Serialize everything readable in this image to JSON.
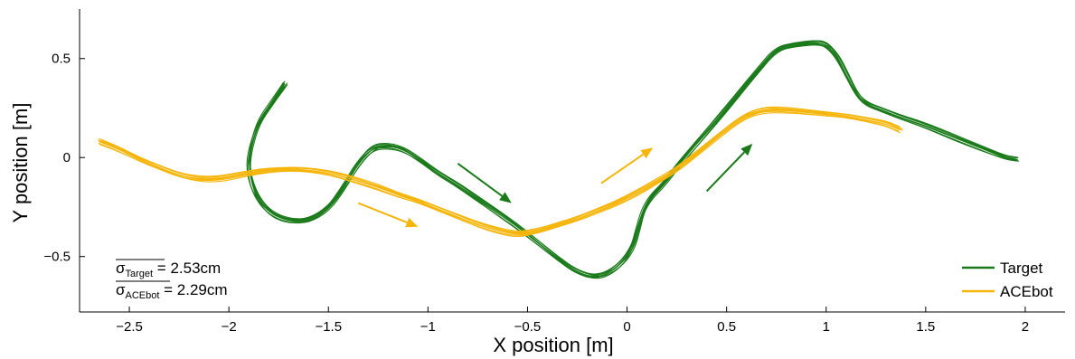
{
  "chart_data": {
    "type": "line",
    "xlabel": "X position [m]",
    "ylabel": "Y position [m]",
    "xlim": [
      -2.75,
      2.2
    ],
    "ylim": [
      -0.78,
      0.75
    ],
    "xticks": [
      -2.5,
      -2,
      -1.5,
      -1,
      -0.5,
      0,
      0.5,
      1,
      1.5,
      2
    ],
    "xtick_labels": [
      "−2.5",
      "−2",
      "−1.5",
      "−1",
      "−0.5",
      "0",
      "0.5",
      "1",
      "1.5",
      "2"
    ],
    "yticks": [
      0.5,
      0,
      -0.5
    ],
    "ytick_labels": [
      "0.5",
      "0",
      "−0.5"
    ],
    "grid": false,
    "legend_position": "bottom-right",
    "series": [
      {
        "name": "Target",
        "color": "#1a7a1a",
        "x": [
          -1.72,
          -1.78,
          -1.85,
          -1.89,
          -1.9,
          -1.88,
          -1.84,
          -1.78,
          -1.7,
          -1.6,
          -1.5,
          -1.42,
          -1.35,
          -1.28,
          -1.2,
          -1.12,
          -1.03,
          -0.95,
          -0.85,
          -0.75,
          -0.65,
          -0.55,
          -0.45,
          -0.35,
          -0.25,
          -0.15,
          -0.05,
          0.02,
          0.05,
          0.08,
          0.12,
          0.18,
          0.25,
          0.35,
          0.45,
          0.55,
          0.65,
          0.75,
          0.85,
          0.95,
          1.0,
          1.05,
          1.1,
          1.15,
          1.2,
          1.28,
          1.38,
          1.5,
          1.62,
          1.72,
          1.82,
          1.9,
          1.96
        ],
        "y": [
          0.37,
          0.28,
          0.18,
          0.05,
          -0.05,
          -0.15,
          -0.23,
          -0.29,
          -0.32,
          -0.32,
          -0.26,
          -0.15,
          -0.03,
          0.05,
          0.06,
          0.04,
          -0.02,
          -0.08,
          -0.14,
          -0.21,
          -0.28,
          -0.35,
          -0.43,
          -0.51,
          -0.58,
          -0.61,
          -0.56,
          -0.47,
          -0.37,
          -0.27,
          -0.2,
          -0.14,
          -0.05,
          0.07,
          0.19,
          0.31,
          0.43,
          0.55,
          0.57,
          0.58,
          0.57,
          0.52,
          0.42,
          0.32,
          0.27,
          0.24,
          0.2,
          0.16,
          0.11,
          0.07,
          0.03,
          0.0,
          -0.01
        ]
      },
      {
        "name": "ACEbot",
        "color": "#f5b50b",
        "x": [
          -2.65,
          -2.55,
          -2.45,
          -2.35,
          -2.25,
          -2.15,
          -2.05,
          -1.95,
          -1.85,
          -1.75,
          -1.65,
          -1.55,
          -1.45,
          -1.35,
          -1.25,
          -1.15,
          -1.05,
          -0.95,
          -0.85,
          -0.75,
          -0.65,
          -0.55,
          -0.45,
          -0.35,
          -0.25,
          -0.15,
          -0.05,
          0.05,
          0.15,
          0.25,
          0.35,
          0.45,
          0.55,
          0.62,
          0.7,
          0.8,
          0.9,
          1.0,
          1.1,
          1.2,
          1.3,
          1.37
        ],
        "y": [
          0.08,
          0.04,
          -0.01,
          -0.05,
          -0.09,
          -0.11,
          -0.11,
          -0.09,
          -0.07,
          -0.06,
          -0.06,
          -0.07,
          -0.09,
          -0.12,
          -0.15,
          -0.19,
          -0.22,
          -0.26,
          -0.3,
          -0.34,
          -0.37,
          -0.39,
          -0.37,
          -0.34,
          -0.31,
          -0.27,
          -0.23,
          -0.18,
          -0.12,
          -0.06,
          0.02,
          0.1,
          0.18,
          0.22,
          0.24,
          0.24,
          0.23,
          0.22,
          0.21,
          0.19,
          0.17,
          0.14
        ]
      }
    ],
    "arrows": [
      {
        "color": "#1a7a1a",
        "from": [
          -0.85,
          -0.03
        ],
        "to": [
          -0.58,
          -0.23
        ]
      },
      {
        "color": "#1a7a1a",
        "from": [
          0.4,
          -0.17
        ],
        "to": [
          0.63,
          0.07
        ]
      },
      {
        "color": "#f5b50b",
        "from": [
          -1.35,
          -0.23
        ],
        "to": [
          -1.05,
          -0.35
        ]
      },
      {
        "color": "#f5b50b",
        "from": [
          -0.13,
          -0.13
        ],
        "to": [
          0.13,
          0.05
        ]
      }
    ],
    "annotations": [
      {
        "symbol": "σ",
        "subscript": "Target",
        "text": " = 2.53cm"
      },
      {
        "symbol": "σ",
        "subscript": "ACEbot",
        "text": " = 2.29cm"
      }
    ]
  }
}
